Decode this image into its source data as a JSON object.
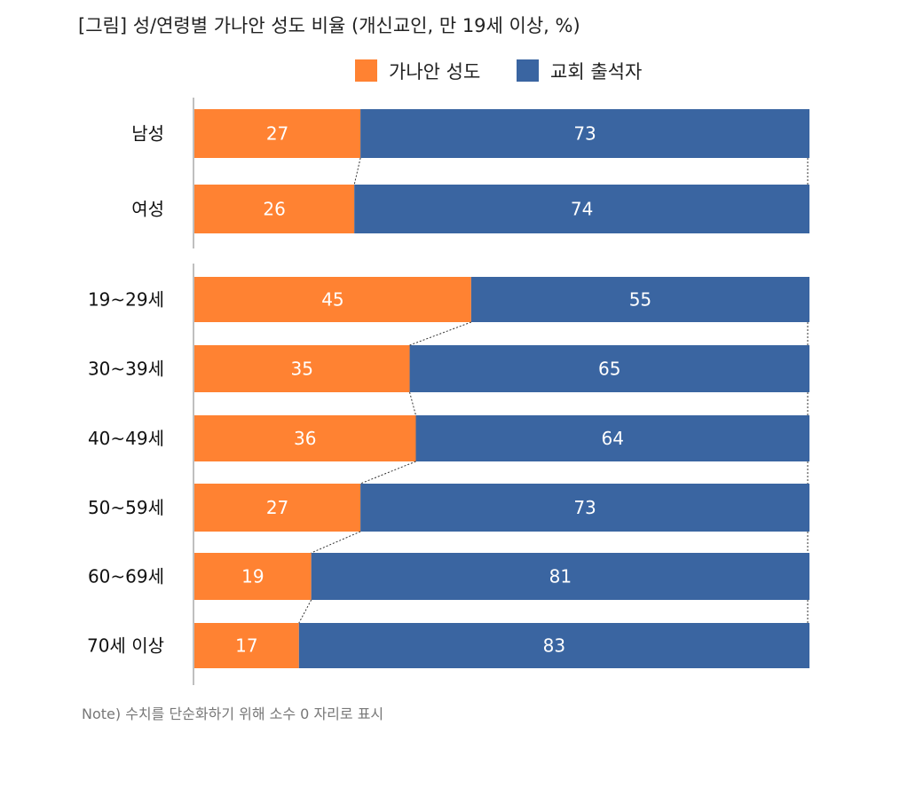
{
  "chart_data": {
    "type": "bar",
    "stacked": true,
    "orientation": "horizontal",
    "title": "[그림] 성/연령별 가나안 성도 비율 (개신교인, 만 19세 이상, %)",
    "categories": [
      "남성",
      "여성",
      "19~29세",
      "30~39세",
      "40~49세",
      "50~59세",
      "60~69세",
      "70세 이상"
    ],
    "groups": [
      [
        "남성",
        "여성"
      ],
      [
        "19~29세",
        "30~39세",
        "40~49세",
        "50~59세",
        "60~69세",
        "70세 이상"
      ]
    ],
    "series": [
      {
        "name": "가나안 성도",
        "color": "#FF8232",
        "values": [
          27,
          26,
          45,
          35,
          36,
          27,
          19,
          17
        ]
      },
      {
        "name": "교회 출석자",
        "color": "#3A65A1",
        "values": [
          73,
          74,
          55,
          65,
          64,
          73,
          81,
          83
        ]
      }
    ],
    "xlim": [
      0,
      100
    ],
    "legend": "top-right",
    "grid": false,
    "note": "Note) 수치를 단순화하기 위해 소수 0 자리로 표시"
  }
}
